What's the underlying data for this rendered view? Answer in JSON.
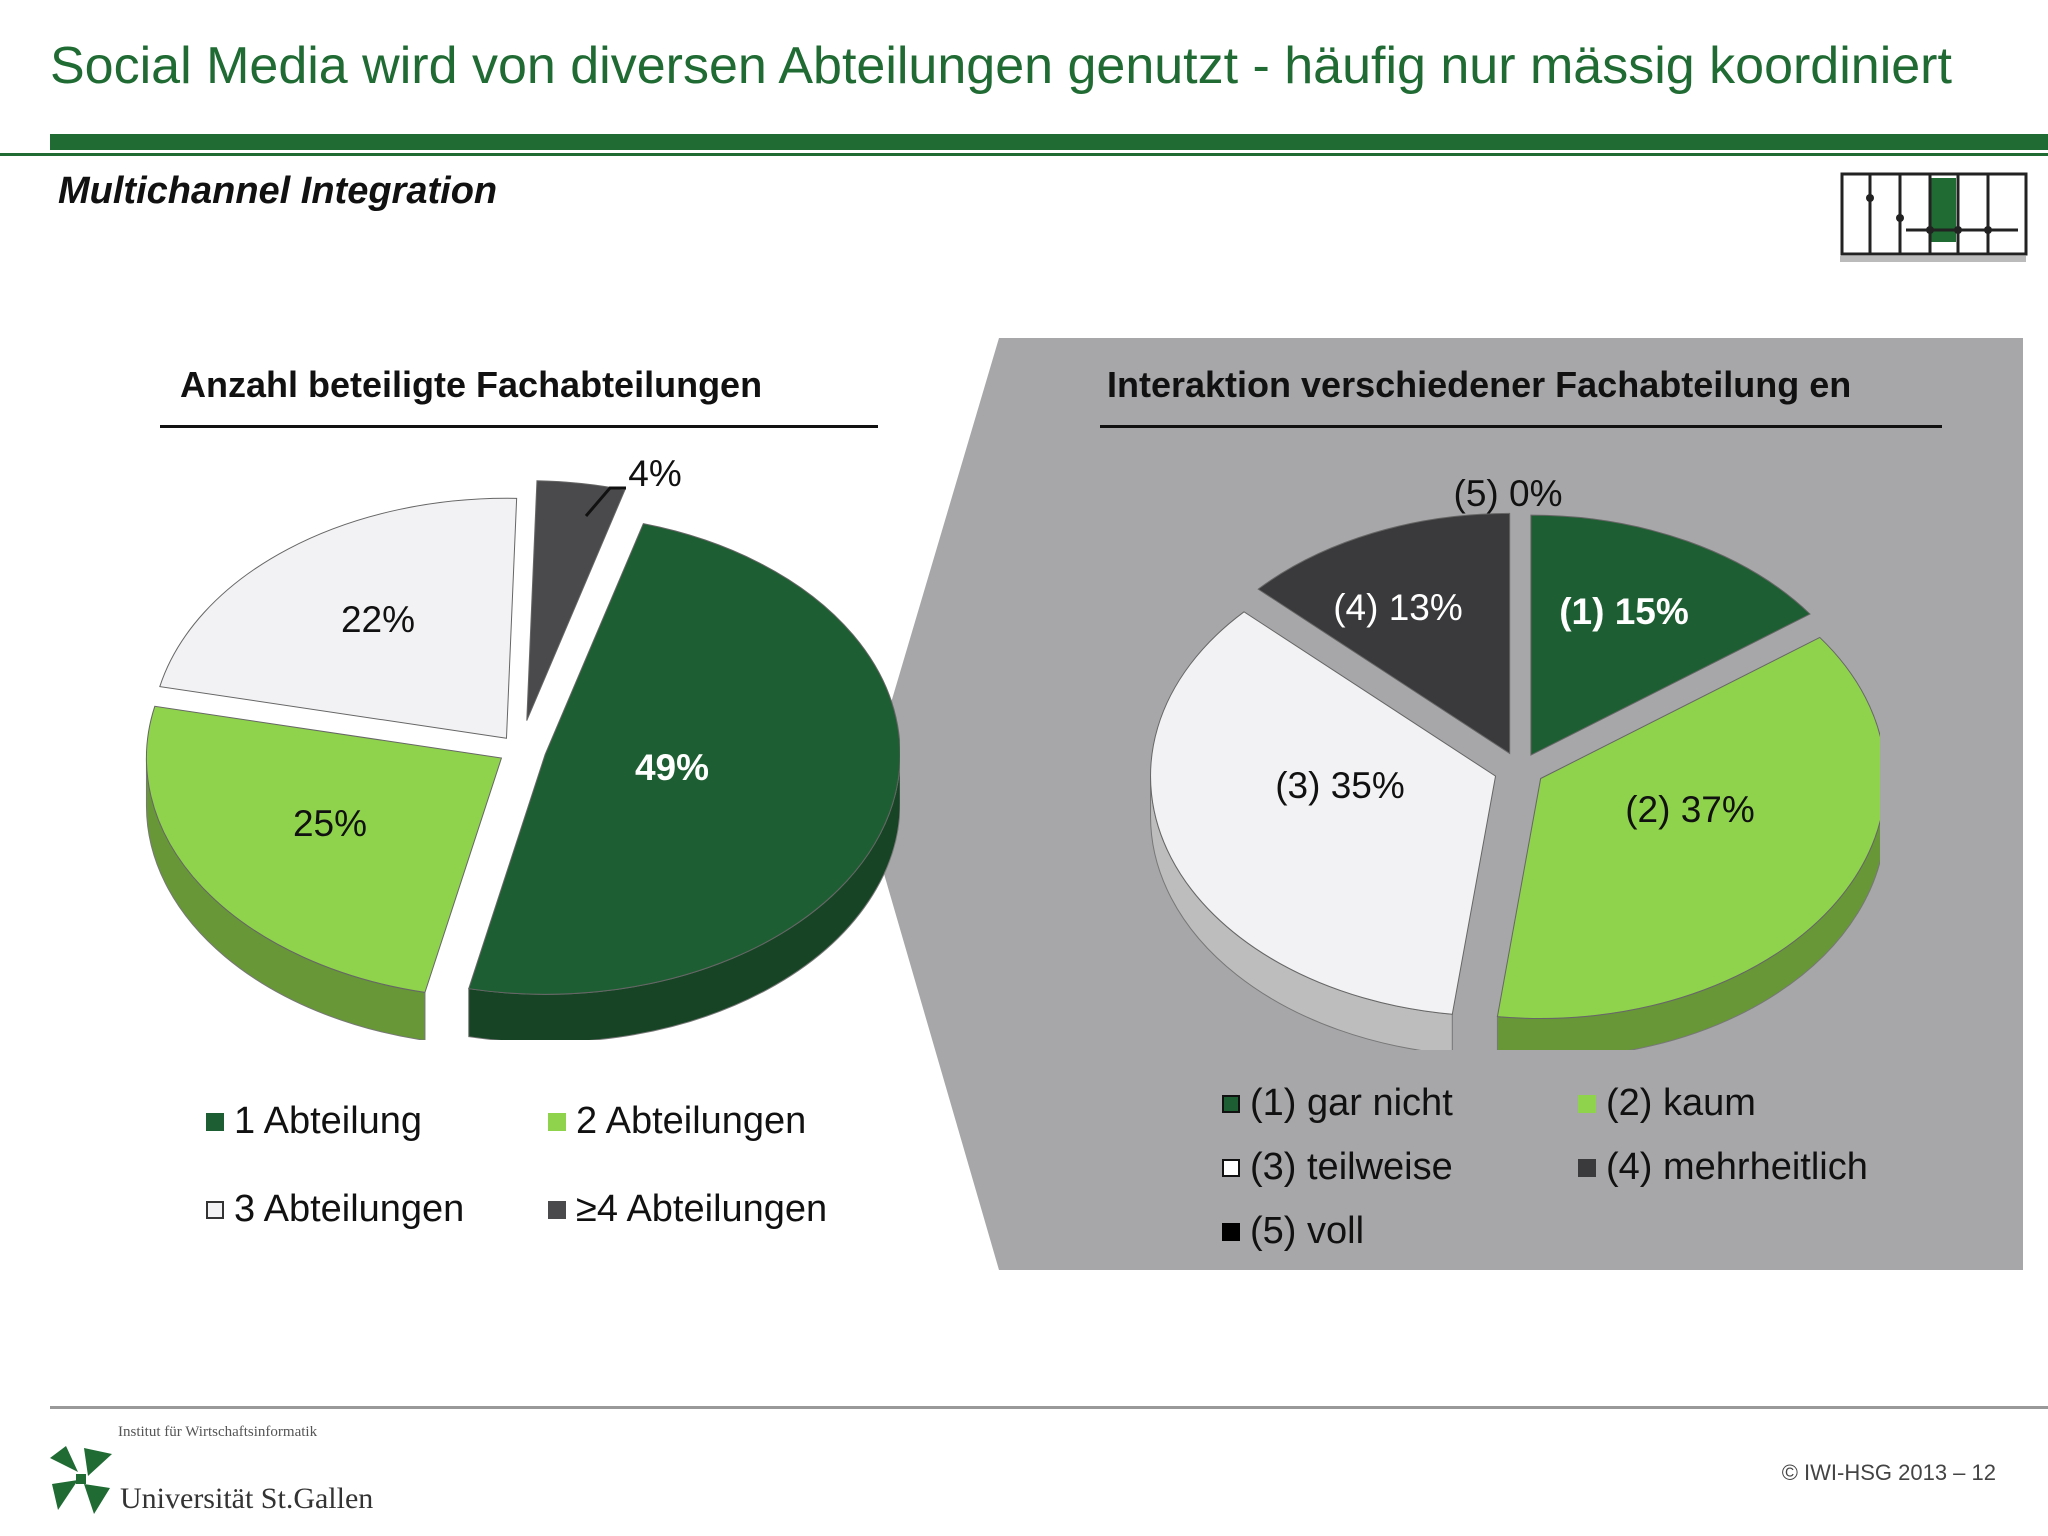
{
  "header": {
    "title": "Social Media wird von diversen Abteilungen genutzt - häufig nur mässig koordiniert",
    "subtitle": "Multichannel Integration",
    "accent_color": "#1f6b33"
  },
  "nav_icon": "process-navigation-icon",
  "chart_data": [
    {
      "type": "pie",
      "title": "Anzahl beteiligte Fachabteilungen",
      "slices": [
        {
          "label": "49%",
          "name": "1 Abteilung",
          "value": 49,
          "color": "#1e5e33"
        },
        {
          "label": "25%",
          "name": "2 Abteilungen",
          "value": 25,
          "color": "#8fd24b"
        },
        {
          "label": "22%",
          "name": "3 Abteilungen",
          "value": 22,
          "color": "#f2f2f4"
        },
        {
          "label": "4%",
          "name": "≥4 Abteilungen",
          "value": 4,
          "color": "#4a4a4c"
        }
      ],
      "legend": [
        "1 Abteilung",
        "2 Abteilungen",
        "3 Abteilungen",
        "≥4 Abteilungen"
      ]
    },
    {
      "type": "pie",
      "title": "Interaktion verschiedener Fachabteilung en",
      "slices": [
        {
          "label": "(1)  15%",
          "name": "(1) gar nicht",
          "value": 15,
          "color": "#1e5e33"
        },
        {
          "label": "(2) 37%",
          "name": "(2) kaum",
          "value": 37,
          "color": "#8fd24b"
        },
        {
          "label": "(3) 35%",
          "name": "(3) teilweise",
          "value": 35,
          "color": "#f2f2f4"
        },
        {
          "label": "(4) 13%",
          "name": "(4) mehrheitlich",
          "value": 13,
          "color": "#3a3a3c"
        },
        {
          "label": "(5) 0%",
          "name": "(5) voll",
          "value": 0,
          "color": "#000000"
        }
      ],
      "legend": [
        "(1) gar nicht",
        "(2) kaum",
        "(3) teilweise",
        "(4) mehrheitlich",
        "(5) voll"
      ]
    }
  ],
  "footer": {
    "institute": "Institut für Wirtschaftsinformatik",
    "university": "Universität St.Gallen",
    "copyright": "© IWI-HSG 2013 – 12"
  }
}
